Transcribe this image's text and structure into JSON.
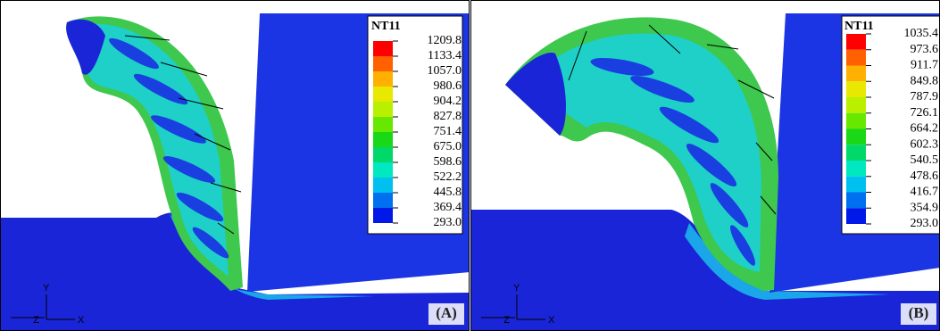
{
  "panels": [
    {
      "label": "(A)",
      "legend": {
        "title": "NT11",
        "levels": [
          "1209.8",
          "1133.4",
          "1057.0",
          "980.6",
          "904.2",
          "827.8",
          "751.4",
          "675.0",
          "598.6",
          "522.2",
          "445.8",
          "369.4",
          "293.0"
        ]
      },
      "triad": {
        "y": "Y",
        "z": "Z",
        "x": "X"
      }
    },
    {
      "label": "(B)",
      "legend": {
        "title": "NT11",
        "levels": [
          "1035.4",
          "973.6",
          "911.7",
          "849.8",
          "787.9",
          "726.1",
          "664.2",
          "602.3",
          "540.5",
          "478.6",
          "416.7",
          "354.9",
          "293.0"
        ]
      },
      "triad": {
        "y": "Y",
        "z": "Z",
        "x": "X"
      }
    }
  ]
}
